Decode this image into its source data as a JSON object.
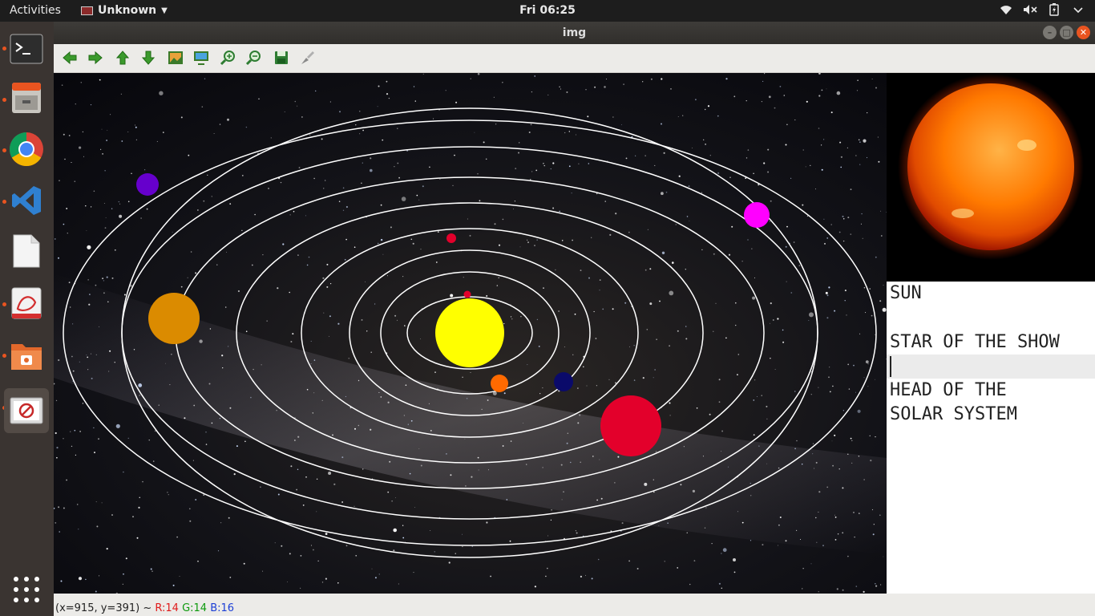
{
  "topbar": {
    "activities": "Activities",
    "app_name": "Unknown",
    "clock": "Fri 06:25",
    "tray": [
      "wifi-icon",
      "volume-muted-icon",
      "battery-icon",
      "power-menu-icon"
    ]
  },
  "dock": {
    "items": [
      "terminal",
      "file-cabinet",
      "chrome",
      "vscode",
      "text-editor",
      "document-viewer",
      "file-manager",
      "image-viewer"
    ]
  },
  "window": {
    "title": "img",
    "toolbar": [
      "prev",
      "next",
      "up",
      "down",
      "image",
      "zoom-fit",
      "zoom-in",
      "zoom-out",
      "save",
      "properties"
    ]
  },
  "side_panel": {
    "lines": [
      "SUN",
      "",
      "STAR OF THE SHOW",
      "",
      "HEAD OF THE",
      "SOLAR SYSTEM"
    ]
  },
  "statusbar": {
    "coords": "(x=915, y=391) ~",
    "r": "R:14",
    "g": "G:14",
    "b": "B:16"
  },
  "colors": {
    "sun": "#ffff00",
    "orbit": "#ffffff",
    "accent": "#e95420"
  }
}
